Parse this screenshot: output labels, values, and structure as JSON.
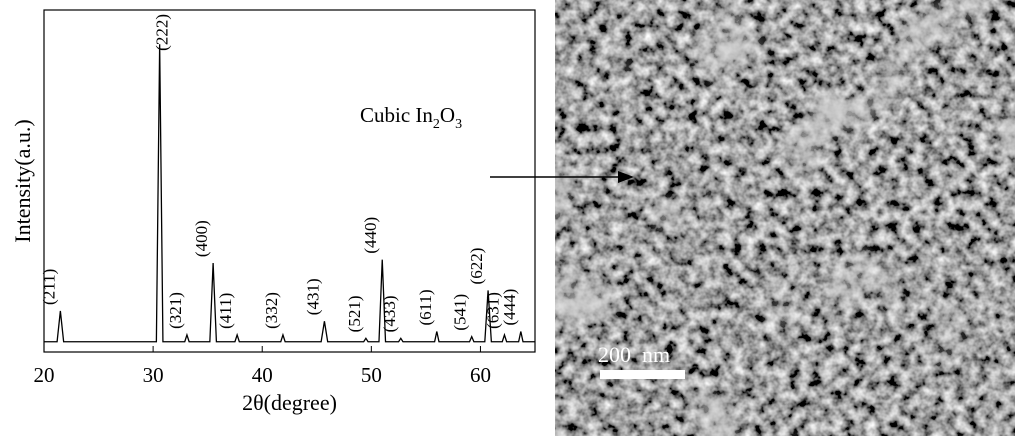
{
  "chart_data": {
    "type": "line",
    "xlabel": "2θ(degree)",
    "ylabel": "Intensity(a.u.)",
    "xlim": [
      20,
      65
    ],
    "xticks": [
      20,
      30,
      40,
      50,
      60
    ],
    "ylim": [
      0,
      100
    ],
    "x": [
      20,
      21.2,
      21.5,
      21.8,
      30.3,
      30.6,
      30.9,
      32.9,
      33.1,
      33.3,
      35.2,
      35.5,
      35.8,
      37.5,
      37.7,
      37.9,
      41.7,
      41.9,
      42.1,
      45.4,
      45.7,
      46.0,
      49.3,
      49.5,
      49.7,
      50.7,
      51.0,
      51.3,
      52.5,
      52.7,
      52.9,
      55.8,
      56.0,
      56.2,
      59.0,
      59.2,
      59.4,
      60.4,
      60.7,
      61.0,
      62.0,
      62.2,
      62.4,
      63.5,
      63.7,
      63.9,
      65
    ],
    "series": [
      {
        "color": "#000000",
        "values": [
          3,
          3,
          12,
          3,
          3,
          90,
          3,
          3,
          5,
          3,
          3,
          26,
          3,
          3,
          5,
          3,
          3,
          5,
          3,
          3,
          9,
          3,
          3,
          4,
          3,
          3,
          27,
          3,
          3,
          4,
          3,
          3,
          6,
          3,
          3,
          4.5,
          3,
          3,
          18,
          3,
          3,
          5,
          3,
          3,
          6,
          3,
          3
        ]
      }
    ],
    "peaks": [
      {
        "label": "(211)",
        "x": 21.5
      },
      {
        "label": "(222)",
        "x": 30.6
      },
      {
        "label": "(321)",
        "x": 33.1
      },
      {
        "label": "(400)",
        "x": 35.5
      },
      {
        "label": "(411)",
        "x": 37.7
      },
      {
        "label": "(332)",
        "x": 41.9
      },
      {
        "label": "(431)",
        "x": 45.7
      },
      {
        "label": "(521)",
        "x": 49.5
      },
      {
        "label": "(440)",
        "x": 51.0
      },
      {
        "label": "(433)",
        "x": 52.7
      },
      {
        "label": "(611)",
        "x": 56.0
      },
      {
        "label": "(541)",
        "x": 59.2
      },
      {
        "label": "(622)",
        "x": 60.7
      },
      {
        "label": "(631)",
        "x": 62.2
      },
      {
        "label": "(444)",
        "x": 63.7
      }
    ],
    "annotation": [
      "Cubic In",
      "2",
      "O",
      "3"
    ],
    "scale_bar": "200  nm"
  }
}
